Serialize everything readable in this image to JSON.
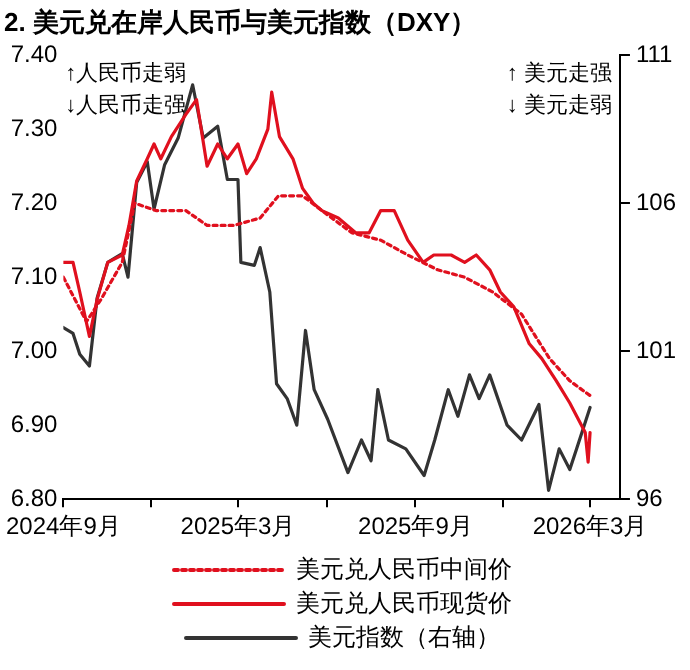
{
  "chart_data": {
    "type": "line",
    "title": "2. 美元兑在岸人民币与美元指数（DXY）",
    "annotations": [
      "↑人民币走弱",
      "↓人民币走强",
      "↑ 美元走强",
      "↓ 美元走弱"
    ],
    "xlim": [
      "2024-09-01",
      "2026-04-01"
    ],
    "xticks": [
      {
        "value": "2024-09-01",
        "label": "2024年9月"
      },
      {
        "value": "2024-12-01",
        "label": null
      },
      {
        "value": "2025-03-01",
        "label": "2025年3月"
      },
      {
        "value": "2025-06-01",
        "label": null
      },
      {
        "value": "2025-09-01",
        "label": "2025年9月"
      },
      {
        "value": "2025-12-01",
        "label": null
      },
      {
        "value": "2026-03-01",
        "label": "2026年3月"
      }
    ],
    "ylim": [
      6.8,
      7.4
    ],
    "yticks": [
      {
        "value": 6.8,
        "label": "6.80"
      },
      {
        "value": 6.9,
        "label": "6.90"
      },
      {
        "value": 7.0,
        "label": "7.00"
      },
      {
        "value": 7.1,
        "label": "7.10"
      },
      {
        "value": 7.2,
        "label": "7.20"
      },
      {
        "value": 7.3,
        "label": "7.30"
      },
      {
        "value": 7.4,
        "label": "7.40"
      }
    ],
    "y2lim": [
      96,
      111
    ],
    "y2ticks": [
      96,
      101,
      106,
      111
    ],
    "grid": false,
    "legend": "bottom",
    "marker": "none",
    "series": [
      {
        "name": "美元兑人民币中间价",
        "color": "#e0101e",
        "line_style": "dotted",
        "x": [
          "2024-09-01",
          "2024-09-25",
          "2024-10-10",
          "2024-11-01",
          "2024-11-14",
          "2024-12-06",
          "2025-01-06",
          "2025-01-28",
          "2025-02-25",
          "2025-03-24",
          "2025-04-12",
          "2025-05-07",
          "2025-05-27",
          "2025-06-27",
          "2025-07-27",
          "2025-08-24",
          "2025-09-24",
          "2025-10-22",
          "2025-11-20",
          "2025-12-20",
          "2026-01-18",
          "2026-02-08",
          "2026-03-01"
        ],
        "values": [
          7.1,
          7.04,
          7.07,
          7.12,
          7.2,
          7.19,
          7.19,
          7.17,
          7.17,
          7.18,
          7.21,
          7.21,
          7.19,
          7.16,
          7.15,
          7.13,
          7.11,
          7.1,
          7.08,
          7.05,
          6.99,
          6.96,
          6.94
        ]
      },
      {
        "name": "美元兑人民币现货价",
        "color": "#e0101e",
        "line_style": "solid",
        "x": [
          "2024-09-01",
          "2024-09-11",
          "2024-09-18",
          "2024-09-28",
          "2024-10-06",
          "2024-10-17",
          "2024-11-01",
          "2024-11-08",
          "2024-11-16",
          "2024-11-27",
          "2024-12-04",
          "2024-12-11",
          "2024-12-22",
          "2025-01-06",
          "2025-01-17",
          "2025-01-28",
          "2025-02-08",
          "2025-02-18",
          "2025-03-01",
          "2025-03-10",
          "2025-03-20",
          "2025-04-01",
          "2025-04-05",
          "2025-04-13",
          "2025-04-27",
          "2025-05-07",
          "2025-05-18",
          "2025-05-27",
          "2025-06-13",
          "2025-07-01",
          "2025-07-15",
          "2025-07-27",
          "2025-08-10",
          "2025-08-24",
          "2025-09-09",
          "2025-09-20",
          "2025-10-08",
          "2025-10-22",
          "2025-11-03",
          "2025-11-17",
          "2025-11-28",
          "2025-12-12",
          "2025-12-28",
          "2026-01-10",
          "2026-01-25",
          "2026-02-08",
          "2026-02-24",
          "2026-02-27",
          "2026-03-01"
        ],
        "values": [
          7.12,
          7.12,
          7.08,
          7.02,
          7.07,
          7.12,
          7.13,
          7.17,
          7.23,
          7.26,
          7.28,
          7.26,
          7.29,
          7.32,
          7.34,
          7.25,
          7.28,
          7.26,
          7.28,
          7.24,
          7.26,
          7.3,
          7.35,
          7.29,
          7.26,
          7.22,
          7.2,
          7.19,
          7.18,
          7.16,
          7.16,
          7.19,
          7.19,
          7.15,
          7.12,
          7.13,
          7.13,
          7.12,
          7.13,
          7.11,
          7.08,
          7.06,
          7.01,
          6.99,
          6.96,
          6.93,
          6.89,
          6.85,
          6.89
        ]
      },
      {
        "name": "美元指数（右轴）",
        "color": "#333333",
        "line_style": "solid",
        "axis": "y2",
        "x": [
          "2024-09-01",
          "2024-09-11",
          "2024-09-18",
          "2024-09-28",
          "2024-10-06",
          "2024-10-17",
          "2024-11-01",
          "2024-11-07",
          "2024-11-16",
          "2024-11-27",
          "2024-12-04",
          "2024-12-15",
          "2024-12-29",
          "2025-01-13",
          "2025-01-24",
          "2025-02-08",
          "2025-02-18",
          "2025-03-01",
          "2025-03-04",
          "2025-03-18",
          "2025-03-24",
          "2025-04-03",
          "2025-04-10",
          "2025-04-21",
          "2025-05-01",
          "2025-05-10",
          "2025-05-19",
          "2025-06-02",
          "2025-06-23",
          "2025-07-07",
          "2025-07-17",
          "2025-07-24",
          "2025-08-04",
          "2025-08-22",
          "2025-09-10",
          "2025-09-21",
          "2025-10-05",
          "2025-10-15",
          "2025-10-27",
          "2025-11-06",
          "2025-11-17",
          "2025-12-05",
          "2025-12-20",
          "2026-01-07",
          "2026-01-17",
          "2026-01-28",
          "2026-02-08",
          "2026-02-15",
          "2026-03-01"
        ],
        "values": [
          101.8,
          101.6,
          100.9,
          100.5,
          102.8,
          104.0,
          104.3,
          103.5,
          106.7,
          107.4,
          105.8,
          107.3,
          108.2,
          110.0,
          108.2,
          108.6,
          106.8,
          106.8,
          104.0,
          103.9,
          104.5,
          103.0,
          99.9,
          99.4,
          98.5,
          101.7,
          99.7,
          98.7,
          96.9,
          98.0,
          97.3,
          99.7,
          98.0,
          97.7,
          96.8,
          98.0,
          99.7,
          98.8,
          100.2,
          99.4,
          100.2,
          98.5,
          98.0,
          99.2,
          96.3,
          97.7,
          97.0,
          97.7,
          99.1
        ]
      }
    ]
  }
}
